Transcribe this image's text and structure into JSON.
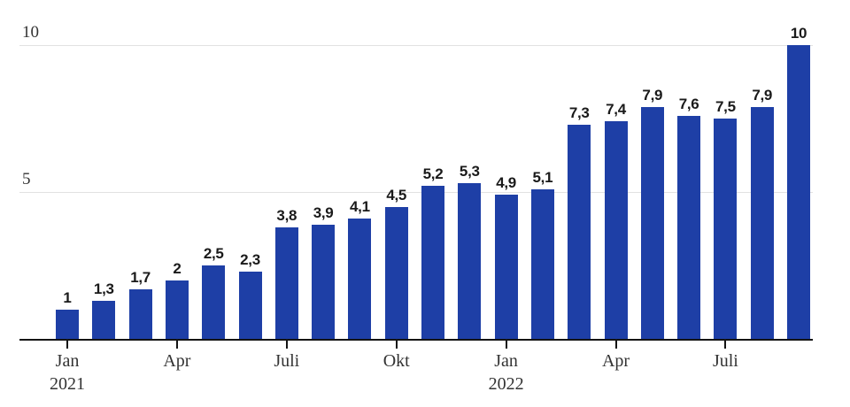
{
  "chart_data": {
    "type": "bar",
    "title": "",
    "xlabel": "",
    "ylabel": "",
    "ylim": [
      0,
      10
    ],
    "grid": true,
    "legend_position": "none",
    "bar_color": "#1e3fa6",
    "gridline_color": "#e2e2e2",
    "axis_color": "#141414",
    "values": [
      1,
      1.3,
      1.7,
      2,
      2.5,
      2.3,
      3.8,
      3.9,
      4.1,
      4.5,
      5.2,
      5.3,
      4.9,
      5.1,
      7.3,
      7.4,
      7.9,
      7.6,
      7.5,
      7.9,
      10
    ],
    "value_labels": [
      "1",
      "1,3",
      "1,7",
      "2",
      "2,5",
      "2,3",
      "3,8",
      "3,9",
      "4,1",
      "4,5",
      "5,2",
      "5,3",
      "4,9",
      "5,1",
      "7,3",
      "7,4",
      "7,9",
      "7,6",
      "7,5",
      "7,9",
      "10"
    ],
    "y_ticks": [
      {
        "value": 5,
        "label": "5"
      },
      {
        "value": 10,
        "label": "10"
      }
    ],
    "x_ticks": [
      {
        "index": 0,
        "lines": [
          "Jan",
          "2021"
        ]
      },
      {
        "index": 3,
        "lines": [
          "Apr"
        ]
      },
      {
        "index": 6,
        "lines": [
          "Juli"
        ]
      },
      {
        "index": 9,
        "lines": [
          "Okt"
        ]
      },
      {
        "index": 12,
        "lines": [
          "Jan",
          "2022"
        ]
      },
      {
        "index": 15,
        "lines": [
          "Apr"
        ]
      },
      {
        "index": 18,
        "lines": [
          "Juli"
        ]
      }
    ]
  }
}
